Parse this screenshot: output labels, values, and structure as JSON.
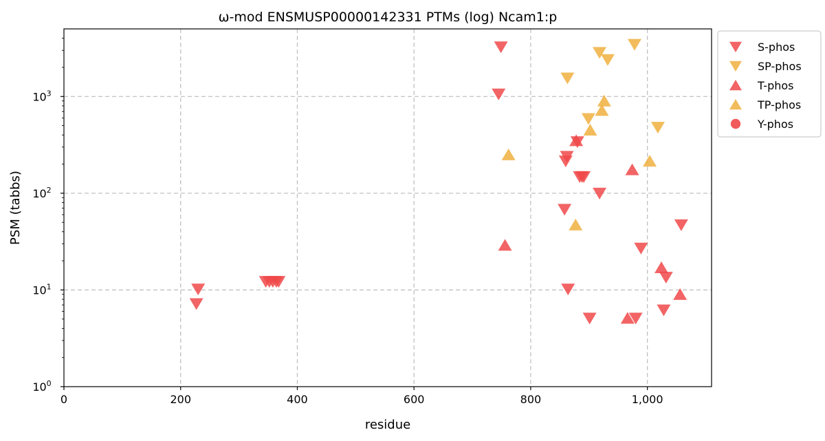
{
  "chart_data": {
    "type": "scatter",
    "title": "ω-mod ENSMUSP00000142331 PTMs (log) Ncam1:p",
    "xlabel": "residue",
    "ylabel": "PSM (tabbs)",
    "xlim": [
      0,
      1110
    ],
    "ylim": [
      1,
      5000
    ],
    "yscale": "log",
    "grid": true,
    "legend_placement": "outside-top-right",
    "x_ticks": [
      {
        "value": 0,
        "label": "0"
      },
      {
        "value": 200,
        "label": "200"
      },
      {
        "value": 400,
        "label": "400"
      },
      {
        "value": 600,
        "label": "600"
      },
      {
        "value": 800,
        "label": "800"
      },
      {
        "value": 1000,
        "label": "1,000"
      }
    ],
    "y_ticks": [
      {
        "value": 1,
        "base": "10",
        "exp": "0"
      },
      {
        "value": 10,
        "base": "10",
        "exp": "1"
      },
      {
        "value": 100,
        "base": "10",
        "exp": "2"
      },
      {
        "value": 1000,
        "base": "10",
        "exp": "3"
      }
    ],
    "series": [
      {
        "name": "S-phos",
        "marker": "triangle-down",
        "color": "#f0494a",
        "points": [
          {
            "x": 227,
            "y": 7.2
          },
          {
            "x": 230,
            "y": 10.2
          },
          {
            "x": 346,
            "y": 12.2
          },
          {
            "x": 352,
            "y": 12.2
          },
          {
            "x": 358,
            "y": 12.2
          },
          {
            "x": 364,
            "y": 12.2
          },
          {
            "x": 368,
            "y": 12.2
          },
          {
            "x": 745,
            "y": 1060
          },
          {
            "x": 749,
            "y": 3250
          },
          {
            "x": 858,
            "y": 68
          },
          {
            "x": 860,
            "y": 215
          },
          {
            "x": 862,
            "y": 240
          },
          {
            "x": 864,
            "y": 10.2
          },
          {
            "x": 880,
            "y": 340
          },
          {
            "x": 884,
            "y": 148
          },
          {
            "x": 888,
            "y": 148
          },
          {
            "x": 891,
            "y": 148
          },
          {
            "x": 901,
            "y": 5.1
          },
          {
            "x": 918,
            "y": 100
          },
          {
            "x": 980,
            "y": 5.1
          },
          {
            "x": 989,
            "y": 27
          },
          {
            "x": 1028,
            "y": 6.2
          },
          {
            "x": 1032,
            "y": 13.5
          },
          {
            "x": 1058,
            "y": 47
          }
        ]
      },
      {
        "name": "SP-phos",
        "marker": "triangle-down",
        "color": "#f0b040",
        "points": [
          {
            "x": 863,
            "y": 1550
          },
          {
            "x": 899,
            "y": 590
          },
          {
            "x": 918,
            "y": 2850
          },
          {
            "x": 932,
            "y": 2400
          },
          {
            "x": 978,
            "y": 3450
          },
          {
            "x": 1018,
            "y": 480
          }
        ]
      },
      {
        "name": "T-phos",
        "marker": "triangle-up",
        "color": "#f0494a",
        "points": [
          {
            "x": 756,
            "y": 29
          },
          {
            "x": 878,
            "y": 350
          },
          {
            "x": 966,
            "y": 5.1
          },
          {
            "x": 974,
            "y": 175
          },
          {
            "x": 1024,
            "y": 17
          },
          {
            "x": 1056,
            "y": 9
          }
        ]
      },
      {
        "name": "TP-phos",
        "marker": "triangle-up",
        "color": "#f0b040",
        "points": [
          {
            "x": 762,
            "y": 250
          },
          {
            "x": 877,
            "y": 47
          },
          {
            "x": 902,
            "y": 450
          },
          {
            "x": 922,
            "y": 720
          },
          {
            "x": 926,
            "y": 900
          },
          {
            "x": 1004,
            "y": 215
          }
        ]
      },
      {
        "name": "Y-phos",
        "marker": "circle",
        "color": "#f0494a",
        "points": []
      }
    ]
  }
}
